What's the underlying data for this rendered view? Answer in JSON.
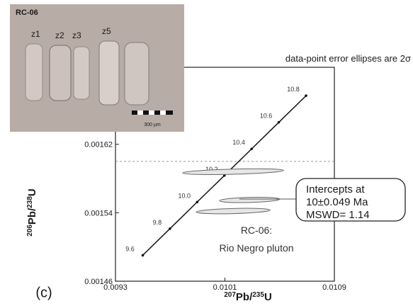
{
  "chart_data": {
    "type": "concordia",
    "note": "data-point error ellipses are 2σ",
    "panel_label": "(c)",
    "x_label": [
      "207",
      "Pb/",
      "235",
      "U"
    ],
    "y_label": [
      "206",
      "Pb/",
      "238",
      "U"
    ],
    "xlim": [
      0.0093,
      0.0109
    ],
    "ylim": [
      0.00146,
      0.00171
    ],
    "xticks": [
      0.0093,
      0.0101,
      0.0109
    ],
    "yticks": [
      0.00146,
      0.00154,
      0.00162
    ],
    "reference_line_y": 0.0016,
    "concordia": {
      "age_labels": [
        "9.6",
        "9.8",
        "10.0",
        "10.2",
        "10.4",
        "10.6",
        "10.8"
      ],
      "x": [
        0.0094994,
        0.0096981,
        0.009897,
        0.010096,
        0.0102949,
        0.0104939,
        0.010693
      ],
      "y": [
        0.0014903,
        0.0015214,
        0.0015525,
        0.0015835,
        0.0016146,
        0.0016457,
        0.0016768
      ]
    },
    "ellipses": {
      "x": [
        0.01016,
        0.01028,
        0.01016
      ],
      "y": [
        0.001588,
        0.001555,
        0.001542
      ],
      "x_err": [
        0.00037,
        0.00022,
        0.00027
      ],
      "y_err": [
        3e-06,
        3e-06,
        3e-06
      ]
    },
    "intercept_box": [
      "Intercepts at",
      "10±0.049 Ma",
      "MSWD= 1.14"
    ],
    "sample_annotation": [
      "RC-06:",
      "Rio Negro pluton"
    ],
    "inset": {
      "sample": "RC-06",
      "zircon_labels": [
        "z1",
        "z2",
        "z3",
        "z5"
      ],
      "scale_label": "300 µm"
    }
  }
}
